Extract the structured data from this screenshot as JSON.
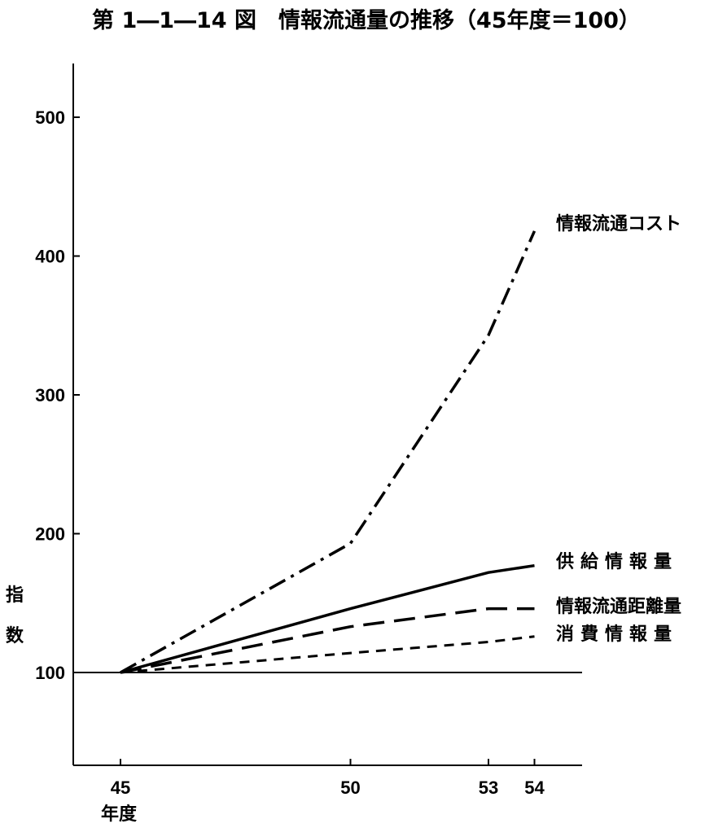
{
  "chart_data": {
    "type": "line",
    "title": "第 1―1―14 図　情報流通量の推移（45年度＝100）",
    "ylabel": "指数",
    "xlabel": "年度",
    "x": [
      45,
      50,
      53,
      54
    ],
    "x_ticks": [
      "45",
      "50",
      "53",
      "54"
    ],
    "xlim": [
      44,
      55
    ],
    "y_ticks": [
      100,
      200,
      300,
      400,
      500
    ],
    "ylim": [
      30,
      540
    ],
    "grid": false,
    "legend": "inline labels at line ends (right)",
    "baseline": 100,
    "series": [
      {
        "name": "情報流通コスト",
        "values": [
          100,
          193,
          343,
          418
        ],
        "style": "dashdot",
        "color": "#000000"
      },
      {
        "name": "供給情報量",
        "values": [
          100,
          146,
          172,
          177
        ],
        "style": "solid",
        "color": "#000000"
      },
      {
        "name": "情報流通距離量",
        "values": [
          100,
          133,
          146,
          146
        ],
        "style": "longdash",
        "color": "#000000"
      },
      {
        "name": "消費情報量",
        "values": [
          100,
          114,
          122,
          126
        ],
        "style": "dashed",
        "color": "#000000"
      }
    ]
  }
}
